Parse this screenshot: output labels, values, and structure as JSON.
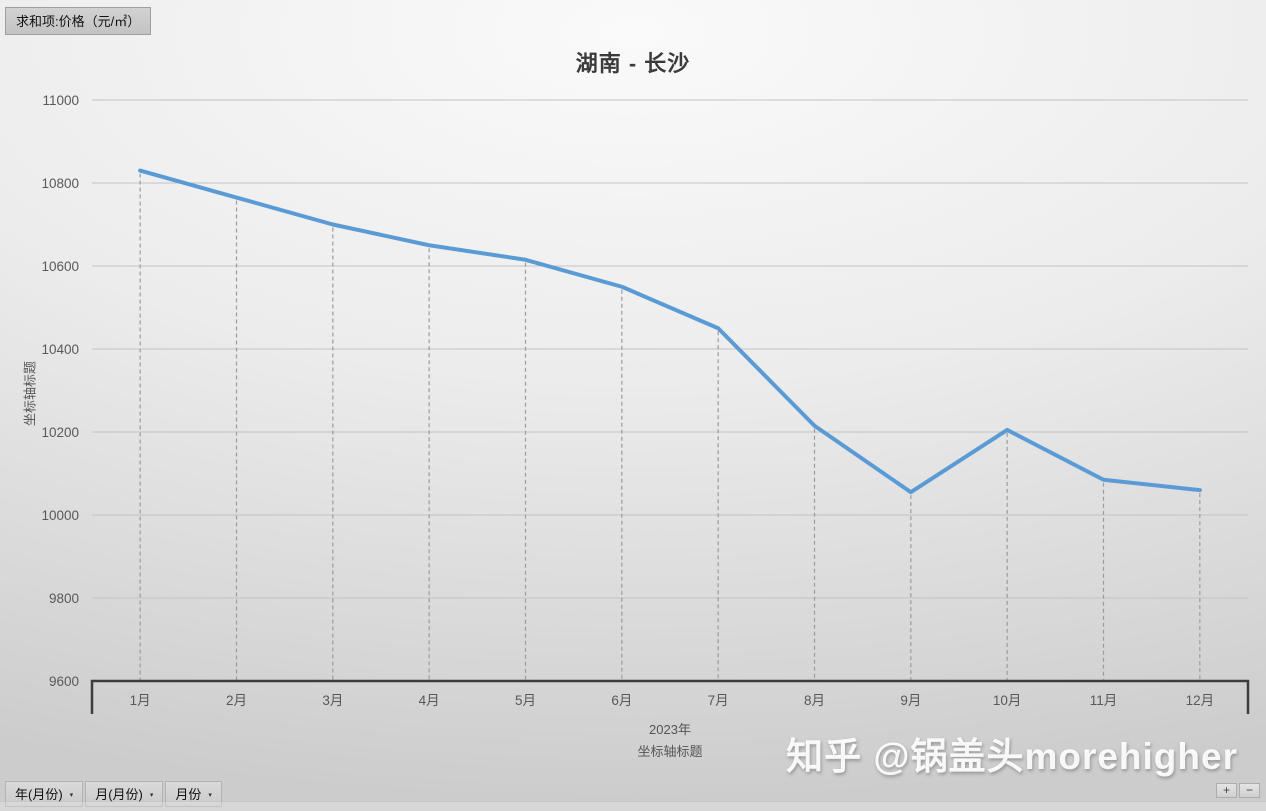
{
  "pivot_value_label": "求和项:价格（元/㎡）",
  "chart_data": {
    "type": "line",
    "title": "湖南 - 长沙",
    "categories": [
      "1月",
      "2月",
      "3月",
      "4月",
      "5月",
      "6月",
      "7月",
      "8月",
      "9月",
      "10月",
      "11月",
      "12月"
    ],
    "series": [
      {
        "name": "求和项:价格（元/㎡）",
        "values": [
          10830,
          10765,
          10700,
          10650,
          10615,
          10550,
          10450,
          10215,
          10055,
          10205,
          10085,
          10060
        ]
      }
    ],
    "ylim": [
      9600,
      11000
    ],
    "yticks": [
      9600,
      9800,
      10000,
      10200,
      10400,
      10600,
      10800,
      11000
    ],
    "xlabel_group": "2023年",
    "xlabel": "坐标轴标题",
    "ylabel": "坐标轴标题",
    "grid": true,
    "drop_lines": true,
    "legend": "none",
    "line_color": "#5B9BD5"
  },
  "field_buttons": [
    {
      "label": "年(月份)"
    },
    {
      "label": "月(月份)"
    },
    {
      "label": "月份"
    }
  ],
  "icons": {
    "dropdown": "▾",
    "zoom_in": "+",
    "zoom_out": "−"
  },
  "watermark": "知乎 @锅盖头morehigher"
}
